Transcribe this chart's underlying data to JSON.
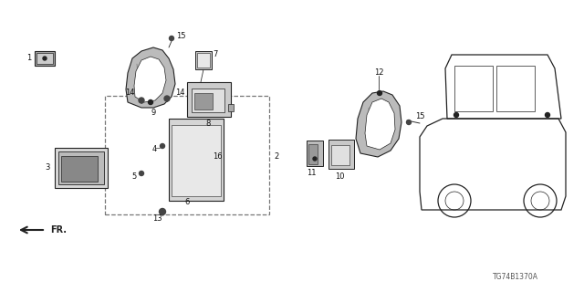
{
  "bg_color": "#ffffff",
  "diagram_code": "TG74B1370A",
  "line_color": "#222222",
  "gray_light": "#cccccc",
  "gray_mid": "#888888",
  "gray_dark": "#444444",
  "dashed_color": "#555555"
}
